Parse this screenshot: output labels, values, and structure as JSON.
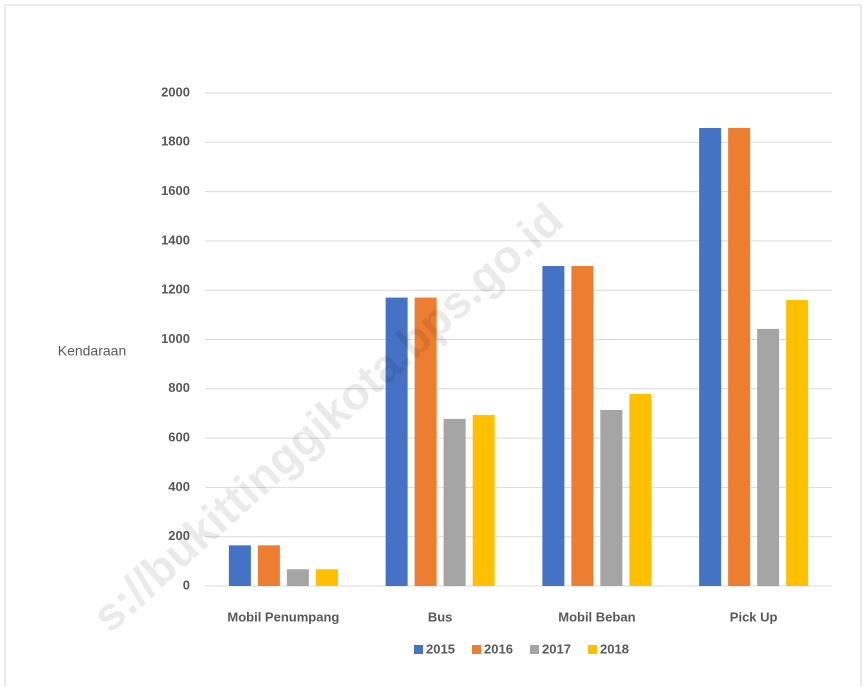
{
  "chart_data": {
    "type": "bar",
    "y_axis_label": "Kendaraan",
    "categories": [
      "Mobil Penumpang",
      "Bus",
      "Mobil Beban",
      "Pick Up"
    ],
    "series": [
      {
        "name": "2015",
        "color": "#4472c4",
        "values": [
          165,
          1170,
          1298,
          1858
        ]
      },
      {
        "name": "2016",
        "color": "#ed7d31",
        "values": [
          165,
          1170,
          1298,
          1858
        ]
      },
      {
        "name": "2017",
        "color": "#a5a5a5",
        "values": [
          68,
          678,
          714,
          1043
        ]
      },
      {
        "name": "2018",
        "color": "#ffc000",
        "values": [
          68,
          694,
          779,
          1160
        ]
      }
    ],
    "ylim": [
      0,
      2000
    ],
    "yticks": [
      0,
      200,
      400,
      600,
      800,
      1000,
      1200,
      1400,
      1600,
      1800,
      2000
    ],
    "grid": true,
    "legend": "bottom",
    "watermark": "s://bukittinggikota.bps.go.id"
  }
}
